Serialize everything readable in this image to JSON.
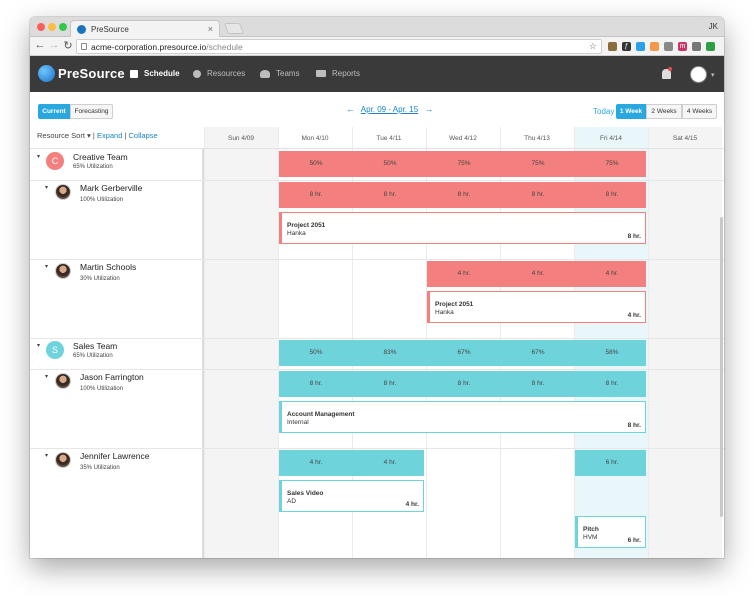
{
  "browser": {
    "tab_title": "PreSource",
    "tab_close": "×",
    "profile_initials": "JK",
    "url_host": "acme-corporation.presource.io",
    "url_path": "/schedule",
    "bookmark_star": "☆",
    "extensions": [
      {
        "name": "ext-1",
        "color": "#8a6d3b",
        "glyph": ""
      },
      {
        "name": "ext-2",
        "color": "#333333",
        "glyph": "ƒ"
      },
      {
        "name": "ext-3",
        "color": "#2aa1e8",
        "glyph": ""
      },
      {
        "name": "ext-4",
        "color": "#f2994a",
        "glyph": ""
      },
      {
        "name": "ext-5",
        "color": "#888888",
        "glyph": ""
      },
      {
        "name": "ext-6",
        "color": "#cc3366",
        "glyph": "m"
      },
      {
        "name": "ext-7",
        "color": "#777777",
        "glyph": ""
      },
      {
        "name": "ext-8",
        "color": "#2e9e44",
        "glyph": ""
      }
    ]
  },
  "app": {
    "logo_text": "PreSource",
    "nav": [
      {
        "label": "Schedule",
        "active": true
      },
      {
        "label": "Resources",
        "active": false
      },
      {
        "label": "Teams",
        "active": false
      },
      {
        "label": "Reports",
        "active": false
      }
    ]
  },
  "controls": {
    "view_tabs": [
      "Current",
      "Forecasting"
    ],
    "active_view": "Current",
    "date_range": "Apr. 09 - Apr. 15",
    "prev_arrow": "←",
    "next_arrow": "→",
    "today_label": "Today",
    "range_options": [
      "1 Week",
      "2 Weeks",
      "4 Weeks"
    ],
    "active_range": "1 Week",
    "sort_label": "Resource Sort",
    "sort_caret": "▾",
    "separator": "|",
    "expand_label": "Expand",
    "collapse_label": "Collapse"
  },
  "days": [
    "Sun 4/09",
    "Mon 4/10",
    "Tue 4/11",
    "Wed 4/12",
    "Thu 4/13",
    "Fri 4/14",
    "Sat 4/15"
  ],
  "colors": {
    "creative": "#f47f7f",
    "sales": "#6fd3dc",
    "accent": "#29a8e0"
  },
  "rows": [
    {
      "kind": "team",
      "name": "Creative Team",
      "utilization": "65% Utilization",
      "initial": "C",
      "palette": "creative",
      "bar": [
        "",
        "50%",
        "50%",
        "75%",
        "75%",
        "75%",
        ""
      ],
      "cards": []
    },
    {
      "kind": "person",
      "name": "Mark Gerberville",
      "utilization": "100% Utilization",
      "palette": "creative",
      "bar": [
        "",
        "8 hr.",
        "8 hr.",
        "8 hr.",
        "8 hr.",
        "8 hr.",
        ""
      ],
      "cards": [
        {
          "title": "Project 2051",
          "client": "Hanka",
          "hours": "8 hr."
        }
      ]
    },
    {
      "kind": "person",
      "name": "Martin Schools",
      "utilization": "30% Utilization",
      "palette": "creative",
      "bar": [
        "",
        "",
        "",
        "4 hr.",
        "4 hr.",
        "4 hr.",
        ""
      ],
      "cards": [
        {
          "title": "Project 2051",
          "client": "Hanka",
          "hours": "4 hr."
        }
      ]
    },
    {
      "kind": "team",
      "name": "Sales Team",
      "utilization": "65% Utilization",
      "initial": "S",
      "palette": "sales",
      "bar": [
        "",
        "50%",
        "83%",
        "67%",
        "67%",
        "58%",
        ""
      ],
      "cards": []
    },
    {
      "kind": "person",
      "name": "Jason Farrington",
      "utilization": "100% Utilization",
      "palette": "sales",
      "bar": [
        "",
        "8 hr.",
        "8 hr.",
        "8 hr.",
        "8 hr.",
        "8 hr.",
        ""
      ],
      "cards": [
        {
          "title": "Account Management",
          "client": "Internal",
          "hours": "8 hr."
        }
      ]
    },
    {
      "kind": "person",
      "name": "Jennifer Lawrence",
      "utilization": "35% Utilization",
      "palette": "sales",
      "bar": [
        "",
        "4 hr.",
        "4 hr.",
        "",
        "",
        "6 hr.",
        ""
      ],
      "cards": [
        {
          "title": "Sales Video",
          "client": "AD",
          "hours": "4 hr."
        },
        {
          "title": "Pitch",
          "client": "HVM",
          "hours": "6 hr."
        }
      ]
    }
  ]
}
